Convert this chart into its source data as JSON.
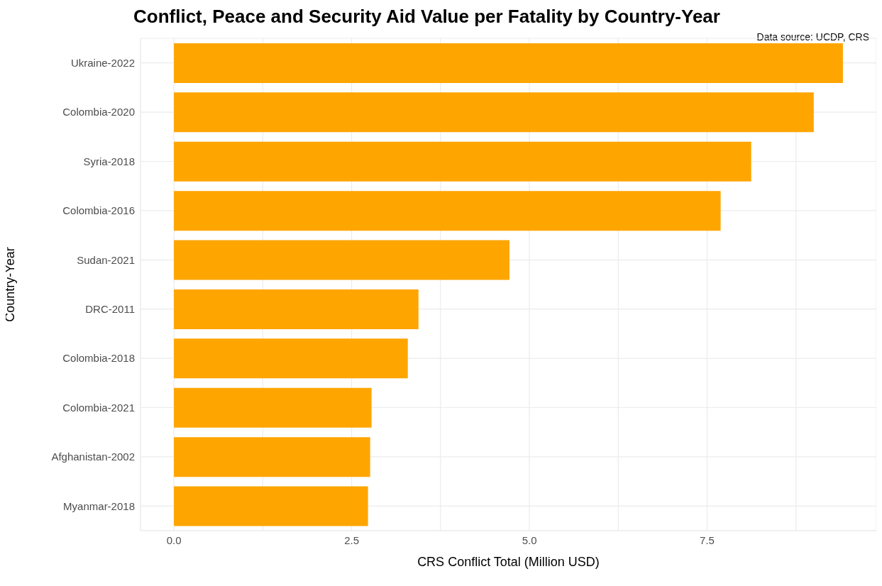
{
  "chart_data": {
    "type": "bar",
    "orientation": "horizontal",
    "title": "Conflict, Peace and Security Aid Value per Fatality by Country-Year",
    "xlabel": "CRS Conflict Total (Million USD)",
    "ylabel": "Country-Year",
    "annotations": [
      "Data source: UCDP, CRS"
    ],
    "categories": [
      "Ukraine-2022",
      "Colombia-2020",
      "Syria-2018",
      "Colombia-2016",
      "Sudan-2021",
      "DRC-2011",
      "Colombia-2018",
      "Colombia-2021",
      "Afghanistan-2002",
      "Myanmar-2018"
    ],
    "values": [
      9.41,
      9.0,
      8.12,
      7.69,
      4.72,
      3.44,
      3.29,
      2.78,
      2.76,
      2.73
    ],
    "color": "#ffa500",
    "xlim": [
      -0.47,
      9.88
    ],
    "xticks": [
      {
        "value": 0,
        "label": "0.0"
      },
      {
        "value": 1.25,
        "label": null
      },
      {
        "value": 2.5,
        "label": "2.5"
      },
      {
        "value": 3.75,
        "label": null
      },
      {
        "value": 5,
        "label": "5.0"
      },
      {
        "value": 6.25,
        "label": null
      },
      {
        "value": 7.5,
        "label": "7.5"
      },
      {
        "value": 8.75,
        "label": null
      }
    ],
    "grid": true,
    "legend": false
  }
}
